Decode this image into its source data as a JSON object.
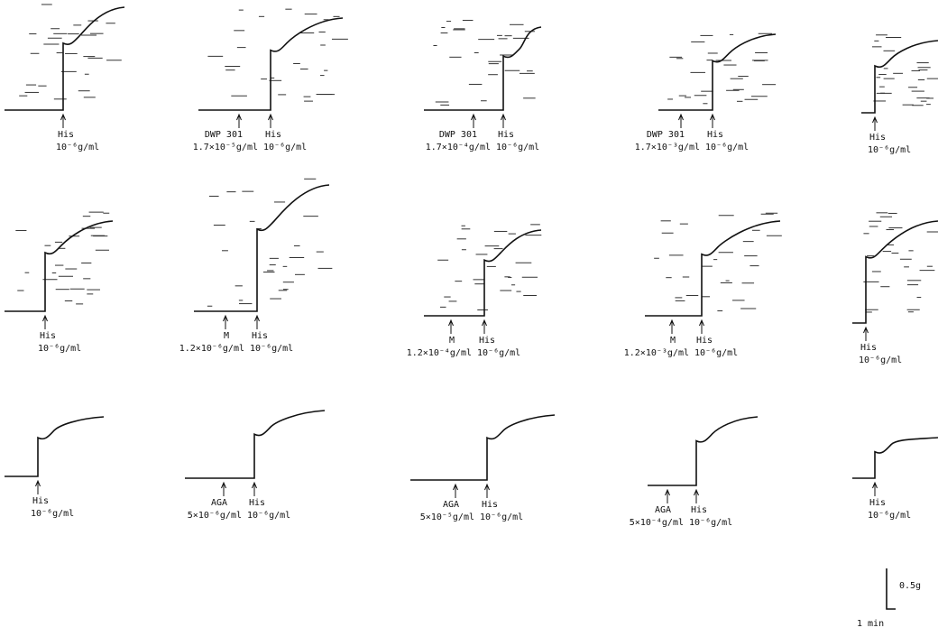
{
  "rows": [
    {
      "panels": [
        {
          "agonist": "His",
          "agonist_dose": "10⁻⁶g/ml"
        },
        {
          "drug": "DWP 301",
          "drug_dose": "1.7×10⁻⁵g/ml",
          "agonist": "His",
          "agonist_dose": "10⁻⁶g/ml"
        },
        {
          "drug": "DWP 301",
          "drug_dose": "1.7×10⁻⁴g/ml",
          "agonist": "His",
          "agonist_dose": "10⁻⁶g/ml"
        },
        {
          "drug": "DWP 301",
          "drug_dose": "1.7×10⁻³g/ml",
          "agonist": "His",
          "agonist_dose": "10⁻⁶g/ml"
        },
        {
          "agonist": "His",
          "agonist_dose": "10⁻⁶g/ml"
        }
      ]
    },
    {
      "panels": [
        {
          "agonist": "His",
          "agonist_dose": "10⁻⁶g/ml"
        },
        {
          "drug": "M",
          "drug_dose": "1.2×10⁻⁶g/ml",
          "agonist": "His",
          "agonist_dose": "10⁻⁶g/ml"
        },
        {
          "drug": "M",
          "drug_dose": "1.2×10⁻⁴g/ml",
          "agonist": "His",
          "agonist_dose": "10⁻⁶g/ml"
        },
        {
          "drug": "M",
          "drug_dose": "1.2×10⁻³g/ml",
          "agonist": "His",
          "agonist_dose": "10⁻⁶g/ml"
        },
        {
          "agonist": "His",
          "agonist_dose": "10⁻⁶g/ml"
        }
      ]
    },
    {
      "panels": [
        {
          "agonist": "His",
          "agonist_dose": "10⁻⁶g/ml"
        },
        {
          "drug": "AGA",
          "drug_dose": "5×10⁻⁶g/ml",
          "agonist": "His",
          "agonist_dose": "10⁻⁶g/ml"
        },
        {
          "drug": "AGA",
          "drug_dose": "5×10⁻⁵g/ml",
          "agonist": "His",
          "agonist_dose": "10⁻⁶g/ml"
        },
        {
          "drug": "AGA",
          "drug_dose": "5×10⁻⁴g/ml",
          "agonist": "His",
          "agonist_dose": "10⁻⁶g/ml"
        },
        {
          "agonist": "His",
          "agonist_dose": "10⁻⁶g/ml"
        }
      ]
    }
  ],
  "scale_bar": {
    "force": "0.5g",
    "time": "1 min"
  }
}
